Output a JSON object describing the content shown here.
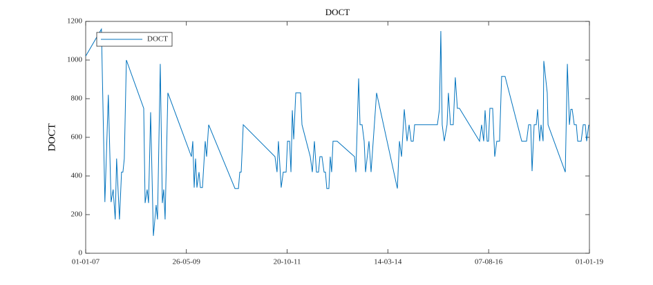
{
  "chart_data": {
    "type": "line",
    "title": "DOCT",
    "y_label": "DOCT",
    "legend": "northwest",
    "grid": false,
    "xlim": [
      "2007-01-01",
      "2019-01-01"
    ],
    "xticks": [
      {
        "value": "2007-01-01",
        "label": "01-01-07"
      },
      {
        "value": "2009-05-26",
        "label": "26-05-09"
      },
      {
        "value": "2011-10-20",
        "label": "20-10-11"
      },
      {
        "value": "2014-03-14",
        "label": "14-03-14"
      },
      {
        "value": "2016-08-07",
        "label": "07-08-16"
      },
      {
        "value": "2019-01-01",
        "label": "01-01-19"
      }
    ],
    "ylim": [
      0,
      1200
    ],
    "yticks": [
      0,
      200,
      400,
      600,
      800,
      1000,
      1200
    ],
    "x": [
      "2007-01-01",
      "2007-05-18",
      "2007-06-17",
      "2007-07-17",
      "2007-08-10",
      "2007-08-28",
      "2007-09-15",
      "2007-09-27",
      "2007-10-22",
      "2007-11-09",
      "2007-11-21",
      "2007-12-03",
      "2007-12-21",
      "2008-05-20",
      "2008-06-01",
      "2008-06-19",
      "2008-07-01",
      "2008-07-19",
      "2008-08-12",
      "2008-09-05",
      "2008-09-17",
      "2008-10-11",
      "2008-10-29",
      "2008-11-10",
      "2008-11-22",
      "2008-12-16",
      "2009-07-09",
      "2009-07-21",
      "2009-08-02",
      "2009-08-14",
      "2009-08-26",
      "2009-09-13",
      "2009-09-25",
      "2009-10-13",
      "2009-11-06",
      "2009-11-18",
      "2009-12-06",
      "2010-07-23",
      "2010-08-22",
      "2010-09-03",
      "2010-09-15",
      "2010-10-03",
      "2011-07-06",
      "2011-07-24",
      "2011-08-05",
      "2011-08-29",
      "2011-09-16",
      "2011-10-11",
      "2011-10-23",
      "2011-11-10",
      "2011-11-22",
      "2011-12-04",
      "2011-12-16",
      "2012-01-03",
      "2012-02-14",
      "2012-02-26",
      "2012-05-08",
      "2012-05-26",
      "2012-06-13",
      "2012-07-01",
      "2012-07-19",
      "2012-07-31",
      "2012-08-18",
      "2012-09-05",
      "2012-09-17",
      "2012-09-29",
      "2012-10-17",
      "2012-10-29",
      "2012-11-10",
      "2012-11-22",
      "2012-12-28",
      "2013-05-28",
      "2013-06-09",
      "2013-07-03",
      "2013-07-15",
      "2013-08-02",
      "2013-08-20",
      "2013-09-01",
      "2013-10-01",
      "2013-10-19",
      "2013-12-06",
      "2014-06-05",
      "2014-06-23",
      "2014-07-11",
      "2014-08-04",
      "2014-08-28",
      "2014-09-15",
      "2014-10-03",
      "2014-10-21",
      "2014-11-02",
      "2015-05-19",
      "2015-06-06",
      "2015-06-18",
      "2015-06-30",
      "2015-07-18",
      "2015-08-11",
      "2015-08-23",
      "2015-09-10",
      "2015-10-04",
      "2015-10-22",
      "2015-11-09",
      "2015-11-27",
      "2016-05-20",
      "2016-06-07",
      "2016-06-25",
      "2016-07-07",
      "2016-07-25",
      "2016-08-06",
      "2016-08-18",
      "2016-09-11",
      "2016-09-29",
      "2016-10-17",
      "2016-11-10",
      "2016-11-28",
      "2016-12-28",
      "2017-05-22",
      "2017-07-03",
      "2017-07-21",
      "2017-08-08",
      "2017-08-20",
      "2017-09-07",
      "2017-09-25",
      "2017-10-07",
      "2017-10-25",
      "2017-11-06",
      "2017-11-24",
      "2017-11-30",
      "2017-12-30",
      "2018-01-06",
      "2018-06-05",
      "2018-06-23",
      "2018-07-11",
      "2018-07-23",
      "2018-08-04",
      "2018-08-22",
      "2018-09-09",
      "2018-09-21",
      "2018-10-21",
      "2018-11-08",
      "2018-11-26",
      "2018-12-08",
      "2018-12-26"
    ],
    "series": [
      {
        "name": "DOCT",
        "color": "#0072bd",
        "values": [
          1020,
          1160,
          265,
          820,
          265,
          330,
          175,
          490,
          175,
          420,
          420,
          490,
          1000,
          750,
          260,
          330,
          260,
          730,
          90,
          250,
          175,
          980,
          260,
          330,
          175,
          830,
          500,
          580,
          340,
          490,
          340,
          420,
          340,
          340,
          580,
          500,
          665,
          335,
          335,
          420,
          420,
          665,
          500,
          420,
          580,
          340,
          420,
          420,
          580,
          580,
          420,
          740,
          590,
          830,
          830,
          665,
          500,
          420,
          580,
          420,
          420,
          500,
          500,
          420,
          420,
          335,
          335,
          500,
          420,
          580,
          580,
          500,
          420,
          905,
          665,
          665,
          580,
          420,
          580,
          420,
          830,
          335,
          580,
          500,
          745,
          580,
          665,
          580,
          580,
          665,
          665,
          745,
          1150,
          665,
          580,
          665,
          830,
          665,
          665,
          910,
          750,
          750,
          580,
          665,
          580,
          740,
          580,
          580,
          750,
          750,
          500,
          580,
          580,
          915,
          915,
          580,
          580,
          665,
          665,
          425,
          665,
          665,
          745,
          580,
          665,
          580,
          995,
          830,
          665,
          420,
          980,
          665,
          745,
          745,
          665,
          665,
          580,
          580,
          665,
          665,
          580,
          665
        ]
      }
    ]
  }
}
